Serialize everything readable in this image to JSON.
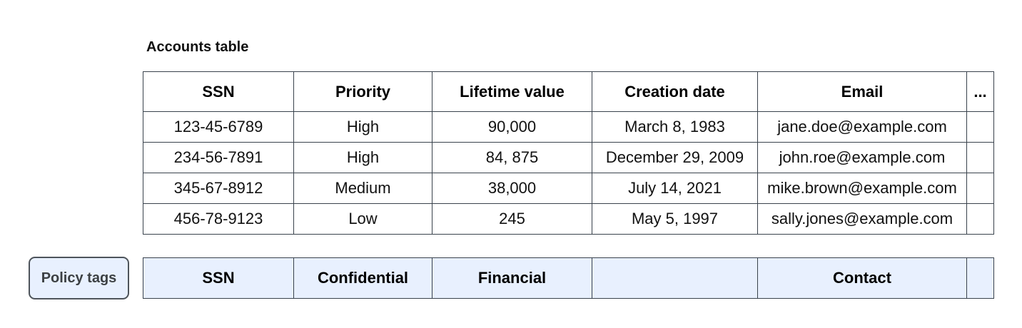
{
  "title": "Accounts table",
  "table": {
    "headers": [
      "SSN",
      "Priority",
      "Lifetime value",
      "Creation date",
      "Email",
      "..."
    ],
    "rows": [
      [
        "123-45-6789",
        "High",
        "90,000",
        "March 8, 1983",
        "jane.doe@example.com",
        ""
      ],
      [
        "234-56-7891",
        "High",
        "84, 875",
        "December 29, 2009",
        "john.roe@example.com",
        ""
      ],
      [
        "345-67-8912",
        "Medium",
        "38,000",
        "July 14, 2021",
        "mike.brown@example.com",
        ""
      ],
      [
        "456-78-9123",
        "Low",
        "245",
        "May 5, 1997",
        "sally.jones@example.com",
        ""
      ]
    ]
  },
  "policy": {
    "button_label": "Policy tags",
    "tags": [
      "SSN",
      "Confidential",
      "Financial",
      "",
      "Contact",
      ""
    ]
  },
  "colors": {
    "table_border": "#39424c",
    "policy_cell_bg": "#e8f0fe",
    "policy_button_bg": "#e8f0fe",
    "policy_button_border": "#4e545b",
    "policy_button_text": "#3c4043",
    "text": "#111111",
    "background": "#ffffff"
  }
}
